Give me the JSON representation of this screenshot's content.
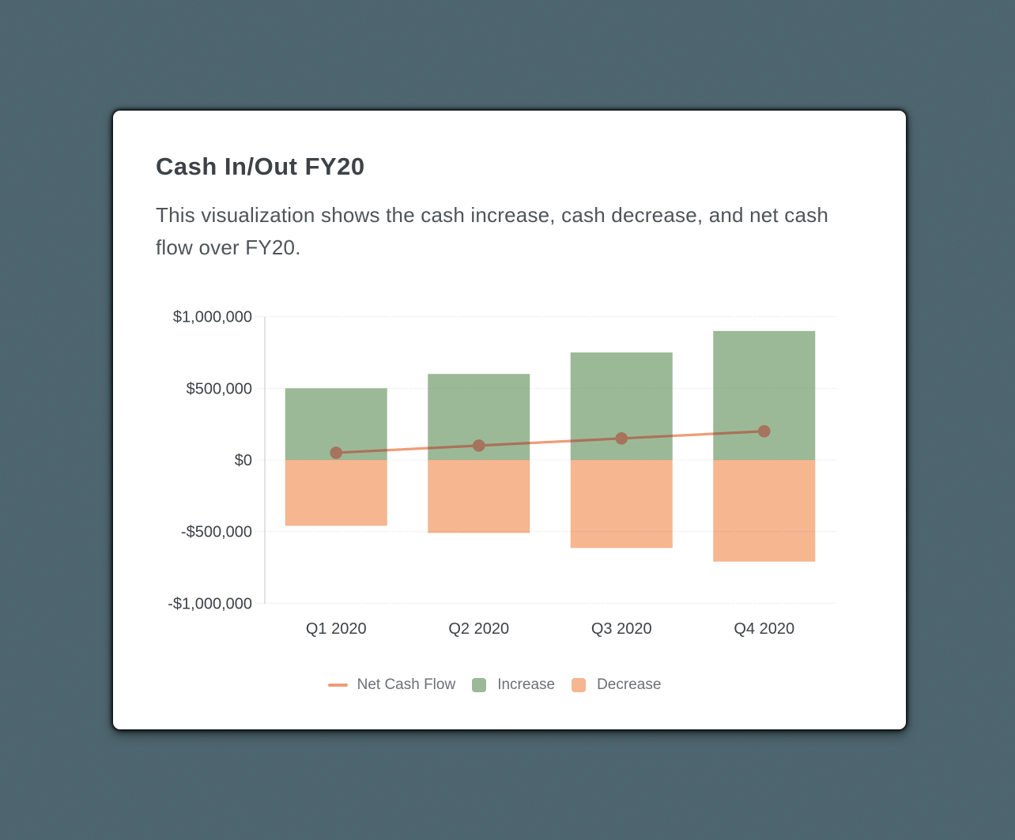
{
  "card": {
    "title": "Cash In/Out FY20",
    "subtitle": "This visualization shows the cash increase, cash decrease, and net cash flow over FY20."
  },
  "colors": {
    "page_background": "#4b636d",
    "card_background": "#ffffff",
    "increase": "#9cb997",
    "decrease": "#f5b690",
    "net_line": "#ee9d79",
    "net_line_over_bars": "#a6735c",
    "grid": "#dcdcdc",
    "axis_text": "#3d4247",
    "legend_text": "#6c7176"
  },
  "chart_data": {
    "type": "bar",
    "title": "Cash In/Out FY20",
    "categories": [
      "Q1 2020",
      "Q2 2020",
      "Q3 2020",
      "Q4 2020"
    ],
    "series": [
      {
        "name": "Increase",
        "type": "bar",
        "values": [
          500000,
          600000,
          750000,
          900000
        ]
      },
      {
        "name": "Decrease",
        "type": "bar",
        "values": [
          -460000,
          -510000,
          -615000,
          -710000
        ]
      },
      {
        "name": "Net Cash Flow",
        "type": "line",
        "values": [
          50000,
          100000,
          150000,
          200000
        ]
      }
    ],
    "ylim": [
      -1000000,
      1000000
    ],
    "yticks": [
      {
        "value": 1000000,
        "label": "$1,000,000"
      },
      {
        "value": 500000,
        "label": "$500,000"
      },
      {
        "value": 0,
        "label": "$0"
      },
      {
        "value": -500000,
        "label": "-$500,000"
      },
      {
        "value": -1000000,
        "label": "-$1,000,000"
      }
    ],
    "grid": true,
    "legend_position": "bottom"
  },
  "legend": [
    {
      "label": "Net Cash Flow",
      "swatch": "line",
      "color_key": "net_line"
    },
    {
      "label": "Increase",
      "swatch": "square",
      "color_key": "increase"
    },
    {
      "label": "Decrease",
      "swatch": "square",
      "color_key": "decrease"
    }
  ]
}
